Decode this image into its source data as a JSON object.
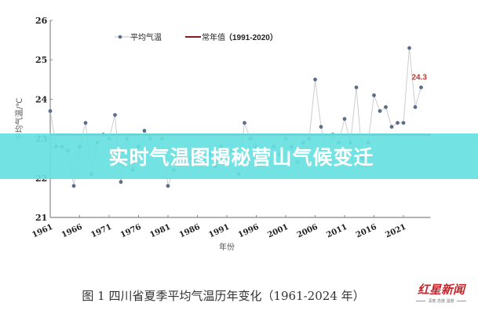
{
  "chart_data": {
    "type": "line",
    "title": "",
    "caption": "图 1 四川省夏季平均气温历年变化（1961-2024 年）",
    "xlabel": "年份",
    "ylabel": "平均气温/℃",
    "ylim": [
      21,
      26
    ],
    "yticks": [
      21,
      22,
      23,
      24,
      25,
      26
    ],
    "xlim": [
      1961,
      2024
    ],
    "xticks": [
      1961,
      1966,
      1971,
      1976,
      1981,
      1986,
      1991,
      1996,
      2001,
      2006,
      2011,
      2016,
      2021
    ],
    "grid": false,
    "legend_position": "top",
    "legend": [
      "平均气温",
      "常年值（1991-2020）"
    ],
    "series": [
      {
        "name": "平均气温",
        "color": "#5b6e85",
        "line_color": "#c8c8c8",
        "x": [
          1961,
          1962,
          1963,
          1964,
          1965,
          1966,
          1967,
          1968,
          1969,
          1970,
          1971,
          1972,
          1973,
          1974,
          1975,
          1976,
          1977,
          1978,
          1979,
          1980,
          1981,
          1982,
          1983,
          1984,
          1985,
          1986,
          1987,
          1988,
          1989,
          1990,
          1991,
          1992,
          1993,
          1994,
          1995,
          1996,
          1997,
          1998,
          1999,
          2000,
          2001,
          2002,
          2003,
          2004,
          2005,
          2006,
          2007,
          2008,
          2009,
          2010,
          2011,
          2012,
          2013,
          2014,
          2015,
          2016,
          2017,
          2018,
          2019,
          2020,
          2021,
          2022,
          2023,
          2024
        ],
        "values": [
          23.7,
          22.8,
          22.8,
          22.7,
          21.8,
          22.8,
          23.4,
          22.1,
          22.9,
          23.1,
          23.0,
          23.6,
          21.9,
          23.0,
          22.2,
          22.8,
          23.2,
          23.0,
          22.7,
          23.0,
          21.8,
          22.2,
          22.6,
          22.4,
          22.5,
          22.7,
          22.5,
          22.6,
          22.3,
          22.8,
          22.6,
          22.7,
          22.1,
          23.4,
          23.0,
          22.8,
          22.6,
          22.7,
          22.8,
          22.6,
          23.0,
          22.8,
          22.4,
          22.9,
          23.0,
          24.5,
          23.3,
          22.6,
          23.1,
          22.9,
          23.5,
          22.9,
          24.3,
          22.5,
          22.9,
          24.1,
          23.7,
          23.8,
          23.3,
          23.4,
          23.4,
          25.3,
          23.8,
          24.3
        ]
      },
      {
        "name": "常年值（1991-2020）",
        "color": "#8b1a1a",
        "value": 23.1
      }
    ],
    "annotations": [
      {
        "x": 2024,
        "y": 24.3,
        "text": "24.3",
        "color": "#c0392b"
      }
    ]
  },
  "legend": {
    "series_label": "平均气温",
    "normal_label_cn": "常年值",
    "normal_label_range": "（1991-2020）"
  },
  "banner": {
    "title": "实时气温图揭秘营山气候变迁",
    "color": "#66e0e0"
  },
  "caption": "图 1 四川省夏季平均气温历年变化（1961-2024 年）",
  "logo": {
    "main": "红星新闻",
    "sub": "深度 态度 温度"
  }
}
